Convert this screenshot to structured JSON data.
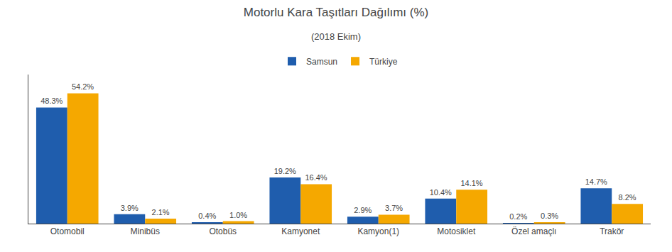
{
  "chart_data": {
    "type": "bar",
    "title": "Motorlu Kara Taşıtları Dağılımı (%)",
    "subtitle": "(2018 Ekim)",
    "categories": [
      "Otomobil",
      "Minibüs",
      "Otobüs",
      "Kamyonet",
      "Kamyon(1)",
      "Motosiklet",
      "Özel amaçlı",
      "Trakör"
    ],
    "series": [
      {
        "name": "Samsun",
        "color": "#1F5DAD",
        "values": [
          48.3,
          3.9,
          0.4,
          19.2,
          2.9,
          10.4,
          0.2,
          14.7
        ],
        "value_labels": [
          "48.3%",
          "3.9%",
          "0.4%",
          "19.2%",
          "2.9%",
          "10.4%",
          "0.2%",
          "14.7%"
        ]
      },
      {
        "name": "Türkiye",
        "color": "#F5A800",
        "values": [
          54.2,
          2.1,
          1.0,
          16.4,
          3.7,
          14.1,
          0.3,
          8.2
        ],
        "value_labels": [
          "54.2%",
          "2.1%",
          "1.0%",
          "16.4%",
          "3.7%",
          "14.1%",
          "0.3%",
          "8.2%"
        ]
      }
    ],
    "ylim": [
      0,
      62
    ],
    "data_labels": true,
    "tick_labels": "x",
    "grid": false,
    "legend": "top"
  }
}
